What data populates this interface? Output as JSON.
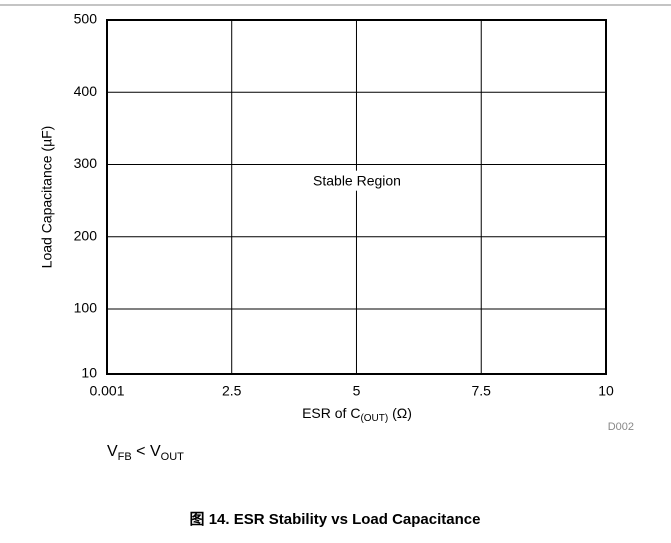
{
  "chart_data": {
    "type": "line",
    "ylabel": "Load Capacitance (µF)",
    "xlabel": {
      "text": "ESR of C",
      "subscript": "(OUT)",
      "suffix": " (Ω)"
    },
    "annotation": "Stable Region",
    "figure_id": "D002",
    "note": {
      "v1": "V",
      "sub1": "FB",
      "mid": " < V",
      "sub2": "OUT"
    },
    "caption": "图 14. ESR Stability vs Load Capacitance",
    "xlim": [
      0.001,
      10
    ],
    "xticks": [
      0.001,
      2.5,
      5,
      7.5,
      10
    ],
    "ylim": [
      10,
      500
    ],
    "yticks": [
      10,
      100,
      200,
      300,
      400,
      500
    ],
    "grid": true,
    "series": []
  }
}
